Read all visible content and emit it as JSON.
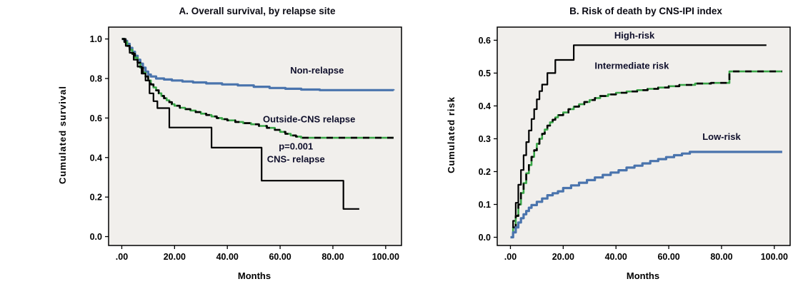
{
  "figure": {
    "background": "#ffffff",
    "plot_background": "#f1efec",
    "label_color": "#10102c"
  },
  "chart_data": [
    {
      "type": "line",
      "style": "kaplan-meier-step",
      "title": "A. Overall survival, by relapse site",
      "xlabel": "Months",
      "ylabel": "Cumulated survival",
      "xlim": [
        -5,
        106
      ],
      "ylim": [
        -0.045,
        1.06
      ],
      "grid": false,
      "plot_bg": "#f1efec",
      "xticks": [
        {
          "v": 0,
          "label": ".00"
        },
        {
          "v": 20,
          "label": "20.00"
        },
        {
          "v": 40,
          "label": "40.00"
        },
        {
          "v": 60,
          "label": "60.00"
        },
        {
          "v": 80,
          "label": "80.00"
        },
        {
          "v": 100,
          "label": "100.00"
        }
      ],
      "yticks": [
        {
          "v": 0.0,
          "label": "0.0"
        },
        {
          "v": 0.2,
          "label": "0.2"
        },
        {
          "v": 0.4,
          "label": "0.4"
        },
        {
          "v": 0.6,
          "label": "0.6"
        },
        {
          "v": 0.8,
          "label": "0.8"
        },
        {
          "v": 1.0,
          "label": "1.0"
        }
      ],
      "annotations": [
        {
          "text": "p=0.001",
          "x": 66,
          "y": 0.44
        }
      ],
      "series": [
        {
          "name": "Non-relapse",
          "color": "#4a74ad",
          "width": 3.2,
          "dash_overlay": false,
          "label": {
            "text": "Non-relapse",
            "x": 74,
            "y": 0.825
          },
          "points": [
            [
              0,
              1.0
            ],
            [
              1,
              0.99
            ],
            [
              2,
              0.975
            ],
            [
              3,
              0.955
            ],
            [
              4,
              0.935
            ],
            [
              5,
              0.915
            ],
            [
              6,
              0.895
            ],
            [
              7,
              0.875
            ],
            [
              8,
              0.855
            ],
            [
              9,
              0.835
            ],
            [
              10,
              0.82
            ],
            [
              11,
              0.81
            ],
            [
              13,
              0.8
            ],
            [
              16,
              0.795
            ],
            [
              19,
              0.79
            ],
            [
              23,
              0.785
            ],
            [
              27,
              0.78
            ],
            [
              32,
              0.775
            ],
            [
              38,
              0.77
            ],
            [
              44,
              0.765
            ],
            [
              50,
              0.758
            ],
            [
              56,
              0.752
            ],
            [
              62,
              0.748
            ],
            [
              68,
              0.744
            ],
            [
              75,
              0.741
            ],
            [
              103,
              0.74
            ]
          ]
        },
        {
          "name": "Outside-CNS relapse",
          "color": "#3aa648",
          "width": 2.6,
          "dash_overlay": true,
          "label": {
            "text": "Outside-CNS relapse",
            "x": 71,
            "y": 0.578
          },
          "points": [
            [
              0,
              1.0
            ],
            [
              1,
              0.985
            ],
            [
              2,
              0.965
            ],
            [
              3,
              0.945
            ],
            [
              4,
              0.925
            ],
            [
              5,
              0.905
            ],
            [
              6,
              0.88
            ],
            [
              7,
              0.855
            ],
            [
              8,
              0.83
            ],
            [
              9,
              0.81
            ],
            [
              10,
              0.79
            ],
            [
              11,
              0.77
            ],
            [
              12,
              0.755
            ],
            [
              13,
              0.74
            ],
            [
              14,
              0.725
            ],
            [
              15,
              0.712
            ],
            [
              16,
              0.7
            ],
            [
              17,
              0.69
            ],
            [
              18,
              0.68
            ],
            [
              19,
              0.67
            ],
            [
              20,
              0.662
            ],
            [
              22,
              0.652
            ],
            [
              24,
              0.645
            ],
            [
              26,
              0.638
            ],
            [
              28,
              0.63
            ],
            [
              30,
              0.622
            ],
            [
              32,
              0.615
            ],
            [
              34,
              0.608
            ],
            [
              36,
              0.6
            ],
            [
              38,
              0.594
            ],
            [
              40,
              0.588
            ],
            [
              43,
              0.58
            ],
            [
              46,
              0.574
            ],
            [
              49,
              0.568
            ],
            [
              52,
              0.56
            ],
            [
              55,
              0.55
            ],
            [
              58,
              0.54
            ],
            [
              60,
              0.53
            ],
            [
              62,
              0.52
            ],
            [
              64,
              0.512
            ],
            [
              66,
              0.506
            ],
            [
              68,
              0.5
            ],
            [
              103,
              0.5
            ]
          ]
        },
        {
          "name": "CNS- relapse",
          "color": "#000000",
          "width": 2.2,
          "dash_overlay": false,
          "label": {
            "text": "CNS- relapse",
            "x": 66,
            "y": 0.375
          },
          "points": [
            [
              0,
              1.0
            ],
            [
              1.5,
              0.965
            ],
            [
              3,
              0.93
            ],
            [
              4.5,
              0.895
            ],
            [
              6,
              0.86
            ],
            [
              7.5,
              0.825
            ],
            [
              9,
              0.79
            ],
            [
              10.5,
              0.725
            ],
            [
              12,
              0.685
            ],
            [
              13.5,
              0.65
            ],
            [
              18,
              0.552
            ],
            [
              34,
              0.45
            ],
            [
              53,
              0.283
            ],
            [
              84,
              0.14
            ],
            [
              90,
              0.14
            ]
          ]
        }
      ]
    },
    {
      "type": "line",
      "style": "cumulative-incidence-step",
      "title": "B. Risk of death by CNS-IPI index",
      "xlabel": "Months",
      "ylabel": "Cumulated risk",
      "xlim": [
        -5,
        106
      ],
      "ylim": [
        -0.025,
        0.64
      ],
      "grid": false,
      "plot_bg": "#f1efec",
      "xticks": [
        {
          "v": 0,
          "label": ".00"
        },
        {
          "v": 20,
          "label": "20.00"
        },
        {
          "v": 40,
          "label": "40.00"
        },
        {
          "v": 60,
          "label": "60.00"
        },
        {
          "v": 80,
          "label": "80.00"
        },
        {
          "v": 100,
          "label": "100.00"
        }
      ],
      "yticks": [
        {
          "v": 0.0,
          "label": "0.0"
        },
        {
          "v": 0.1,
          "label": "0.1"
        },
        {
          "v": 0.2,
          "label": "0.2"
        },
        {
          "v": 0.3,
          "label": "0.3"
        },
        {
          "v": 0.4,
          "label": "0.4"
        },
        {
          "v": 0.5,
          "label": "0.5"
        },
        {
          "v": 0.6,
          "label": "0.6"
        }
      ],
      "annotations": [],
      "series": [
        {
          "name": "High-risk",
          "color": "#000000",
          "width": 2.2,
          "dash_overlay": false,
          "label": {
            "text": "High-risk",
            "x": 47,
            "y": 0.605
          },
          "points": [
            [
              0,
              0
            ],
            [
              1,
              0.05
            ],
            [
              2,
              0.105
            ],
            [
              3,
              0.16
            ],
            [
              4,
              0.205
            ],
            [
              5,
              0.25
            ],
            [
              6,
              0.29
            ],
            [
              7,
              0.325
            ],
            [
              8,
              0.36
            ],
            [
              9,
              0.39
            ],
            [
              10,
              0.42
            ],
            [
              11,
              0.445
            ],
            [
              12,
              0.465
            ],
            [
              14,
              0.5
            ],
            [
              17,
              0.54
            ],
            [
              24,
              0.585
            ],
            [
              97,
              0.585
            ]
          ]
        },
        {
          "name": "Intermediate risk",
          "color": "#3aa648",
          "width": 2.6,
          "dash_overlay": true,
          "label": {
            "text": "Intermediate risk",
            "x": 46,
            "y": 0.513
          },
          "points": [
            [
              0,
              0
            ],
            [
              1,
              0.03
            ],
            [
              2,
              0.065
            ],
            [
              3,
              0.1
            ],
            [
              4,
              0.135
            ],
            [
              5,
              0.165
            ],
            [
              6,
              0.195
            ],
            [
              7,
              0.22
            ],
            [
              8,
              0.245
            ],
            [
              9,
              0.265
            ],
            [
              10,
              0.285
            ],
            [
              11,
              0.3
            ],
            [
              12,
              0.315
            ],
            [
              13,
              0.328
            ],
            [
              14,
              0.34
            ],
            [
              15,
              0.35
            ],
            [
              16,
              0.358
            ],
            [
              17,
              0.365
            ],
            [
              18,
              0.372
            ],
            [
              20,
              0.38
            ],
            [
              22,
              0.39
            ],
            [
              24,
              0.398
            ],
            [
              26,
              0.405
            ],
            [
              28,
              0.412
            ],
            [
              30,
              0.418
            ],
            [
              32,
              0.424
            ],
            [
              34,
              0.43
            ],
            [
              37,
              0.435
            ],
            [
              40,
              0.44
            ],
            [
              44,
              0.444
            ],
            [
              48,
              0.448
            ],
            [
              52,
              0.452
            ],
            [
              56,
              0.456
            ],
            [
              60,
              0.46
            ],
            [
              64,
              0.464
            ],
            [
              70,
              0.468
            ],
            [
              76,
              0.47
            ],
            [
              83,
              0.505
            ],
            [
              103,
              0.505
            ]
          ]
        },
        {
          "name": "Low-risk",
          "color": "#4a74ad",
          "width": 3.2,
          "dash_overlay": false,
          "label": {
            "text": "Low-risk",
            "x": 80,
            "y": 0.297
          },
          "points": [
            [
              0,
              0
            ],
            [
              1,
              0.015
            ],
            [
              2,
              0.03
            ],
            [
              3,
              0.045
            ],
            [
              4,
              0.058
            ],
            [
              5,
              0.07
            ],
            [
              6,
              0.08
            ],
            [
              7,
              0.09
            ],
            [
              8,
              0.098
            ],
            [
              10,
              0.108
            ],
            [
              12,
              0.118
            ],
            [
              14,
              0.128
            ],
            [
              16,
              0.134
            ],
            [
              18,
              0.14
            ],
            [
              20,
              0.15
            ],
            [
              23,
              0.158
            ],
            [
              26,
              0.166
            ],
            [
              29,
              0.174
            ],
            [
              32,
              0.182
            ],
            [
              35,
              0.19
            ],
            [
              38,
              0.197
            ],
            [
              41,
              0.204
            ],
            [
              44,
              0.212
            ],
            [
              47,
              0.218
            ],
            [
              50,
              0.225
            ],
            [
              53,
              0.232
            ],
            [
              56,
              0.238
            ],
            [
              59,
              0.244
            ],
            [
              62,
              0.25
            ],
            [
              65,
              0.255
            ],
            [
              68,
              0.26
            ],
            [
              103,
              0.26
            ]
          ]
        }
      ]
    }
  ]
}
